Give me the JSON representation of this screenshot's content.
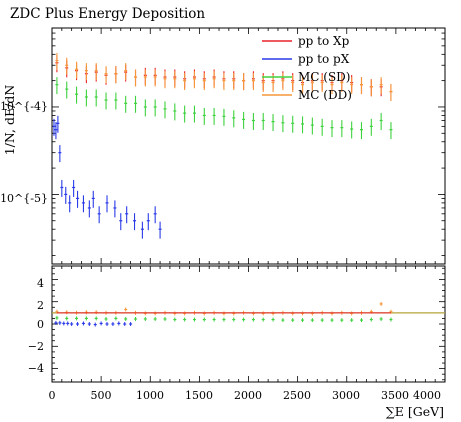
{
  "chart_data": [
    {
      "type": "scatter",
      "title": "ZDC Plus Energy Deposition",
      "ylabel": "1/N, dE/dN",
      "yscale": "log",
      "ylim": [
        1.6e-06,
        0.0008
      ],
      "xlim": [
        0,
        4000
      ],
      "y_tick_labels": [
        "10^{-4}",
        "10^{-5}"
      ],
      "legend_position": "top-right",
      "series": [
        {
          "name": "pp to Xp",
          "color": "#e8202a",
          "x": [
            50,
            150,
            250,
            350,
            450,
            550,
            650,
            750,
            850,
            950,
            1050,
            1150,
            1250,
            1350,
            1450,
            1550,
            1650,
            1750,
            1850,
            1950,
            2050,
            2150,
            2250,
            2350,
            2450,
            2550,
            2650,
            2750,
            2850,
            2950,
            3050,
            3150,
            3250,
            3350,
            3450
          ],
          "y": [
            0.00032,
            0.00028,
            0.00026,
            0.00024,
            0.00025,
            0.00023,
            0.00024,
            0.00025,
            0.00022,
            0.00023,
            0.00023,
            0.00022,
            0.00022,
            0.00021,
            0.00022,
            0.00021,
            0.00022,
            0.00021,
            0.00021,
            0.0002,
            0.00021,
            0.0002,
            0.0002,
            0.00021,
            0.0002,
            0.00019,
            0.0002,
            0.0002,
            0.00019,
            0.0002,
            0.00019,
            0.00018,
            0.00017,
            0.00017,
            0.00015
          ]
        },
        {
          "name": "pp to pX",
          "color": "#2a3be8",
          "x": [
            20,
            40,
            60,
            80,
            100,
            140,
            180,
            220,
            260,
            320,
            380,
            420,
            480,
            560,
            640,
            700,
            760,
            840,
            920,
            980,
            1050,
            1100
          ],
          "y": [
            6e-05,
            5.5e-05,
            6.5e-05,
            3e-05,
            1.2e-05,
            1e-05,
            8e-06,
            1.2e-05,
            9e-06,
            8e-06,
            7e-06,
            9e-06,
            6e-06,
            8e-06,
            7e-06,
            5e-06,
            6e-06,
            5e-06,
            4e-06,
            5e-06,
            6e-06,
            4e-06
          ]
        },
        {
          "name": "MC (SD)",
          "color": "#3ed23e",
          "x": [
            50,
            150,
            250,
            350,
            450,
            550,
            650,
            750,
            850,
            950,
            1050,
            1150,
            1250,
            1350,
            1450,
            1550,
            1650,
            1750,
            1850,
            1950,
            2050,
            2150,
            2250,
            2350,
            2450,
            2550,
            2650,
            2750,
            2850,
            2950,
            3050,
            3150,
            3250,
            3350,
            3450
          ],
          "y": [
            0.00018,
            0.00016,
            0.00014,
            0.00013,
            0.00013,
            0.00012,
            0.00012,
            0.00011,
            0.00011,
            0.0001,
            0.0001,
            9.5e-05,
            9e-05,
            8.5e-05,
            8.5e-05,
            8e-05,
            8e-05,
            7.8e-05,
            7.5e-05,
            7.2e-05,
            7e-05,
            7e-05,
            6.8e-05,
            6.6e-05,
            6.5e-05,
            6.4e-05,
            6.2e-05,
            6e-05,
            5.8e-05,
            5.8e-05,
            5.6e-05,
            5.5e-05,
            6e-05,
            7e-05,
            5.5e-05
          ]
        },
        {
          "name": "MC (DD)",
          "color": "#f6973a",
          "x": [
            50,
            150,
            250,
            350,
            450,
            550,
            650,
            750,
            850,
            950,
            1050,
            1150,
            1250,
            1350,
            1450,
            1550,
            1650,
            1750,
            1850,
            1950,
            2050,
            2150,
            2250,
            2350,
            2450,
            2550,
            2650,
            2750,
            2850,
            2950,
            3050,
            3150,
            3250,
            3350,
            3450
          ],
          "y": [
            0.00034,
            0.0003,
            0.00027,
            0.00026,
            0.00026,
            0.00024,
            0.00024,
            0.00026,
            0.00022,
            0.00022,
            0.00022,
            0.00021,
            0.00021,
            0.0002,
            0.00021,
            0.0002,
            0.00021,
            0.0002,
            0.0002,
            0.0002,
            0.0002,
            0.00019,
            0.00019,
            0.0002,
            0.00019,
            0.00018,
            0.00019,
            0.00019,
            0.00018,
            0.00019,
            0.00018,
            0.00018,
            0.00017,
            0.00018,
            0.00015
          ]
        }
      ]
    },
    {
      "type": "scatter",
      "xlabel": "∑E [GeV]",
      "xlim": [
        0,
        4000
      ],
      "ylim": [
        -5.2,
        5.2
      ],
      "x_tick_labels": [
        "0",
        "500",
        "1000",
        "1500",
        "2000",
        "2500",
        "3000",
        "3500",
        "4000"
      ],
      "y_tick_labels": [
        "4",
        "2",
        "0",
        "−2",
        "−4"
      ],
      "reference_line": 1,
      "series": [
        {
          "name": "pp to pX",
          "color": "#2a3be8",
          "x": [
            40,
            80,
            120,
            160,
            200,
            260,
            320,
            380,
            440,
            500,
            560,
            620,
            680,
            740,
            800
          ],
          "y": [
            0.1,
            0.1,
            0.05,
            0.05,
            0.0,
            0.0,
            0.05,
            0.0,
            -0.05,
            0.05,
            0.0,
            0.0,
            0.05,
            0.0,
            0.0
          ]
        },
        {
          "name": "MC (SD)",
          "color": "#3ed23e",
          "x": [
            50,
            150,
            250,
            350,
            450,
            550,
            650,
            750,
            850,
            950,
            1050,
            1150,
            1250,
            1350,
            1450,
            1550,
            1650,
            1750,
            1850,
            1950,
            2050,
            2150,
            2250,
            2350,
            2450,
            2550,
            2650,
            2750,
            2850,
            2950,
            3050,
            3150,
            3250,
            3350,
            3450
          ],
          "y": [
            0.55,
            0.5,
            0.5,
            0.5,
            0.5,
            0.45,
            0.5,
            0.45,
            0.45,
            0.45,
            0.45,
            0.45,
            0.4,
            0.4,
            0.4,
            0.4,
            0.4,
            0.4,
            0.4,
            0.4,
            0.4,
            0.4,
            0.4,
            0.35,
            0.35,
            0.35,
            0.35,
            0.35,
            0.35,
            0.35,
            0.35,
            0.35,
            0.4,
            0.45,
            0.4
          ]
        },
        {
          "name": "MC (DD)",
          "color": "#f6973a",
          "x": [
            50,
            150,
            250,
            350,
            450,
            550,
            650,
            750,
            850,
            950,
            1050,
            1150,
            1250,
            1350,
            1450,
            1550,
            1650,
            1750,
            1850,
            1950,
            2050,
            2150,
            2250,
            2350,
            2450,
            2550,
            2650,
            2750,
            2850,
            2950,
            3050,
            3150,
            3250,
            3350,
            3450
          ],
          "y": [
            1.1,
            1.05,
            1.0,
            1.05,
            1.05,
            1.0,
            1.0,
            1.3,
            1.0,
            0.95,
            0.95,
            1.0,
            0.95,
            0.95,
            1.0,
            0.95,
            1.0,
            0.95,
            0.95,
            1.0,
            0.95,
            0.95,
            0.95,
            1.0,
            0.95,
            0.95,
            0.95,
            1.0,
            0.95,
            1.0,
            0.95,
            1.0,
            1.1,
            1.8,
            1.1
          ]
        },
        {
          "name": "pp to Xp",
          "color": "#e8202a",
          "x": [
            50,
            3450
          ],
          "y": [
            1.0,
            1.0
          ]
        }
      ]
    }
  ]
}
